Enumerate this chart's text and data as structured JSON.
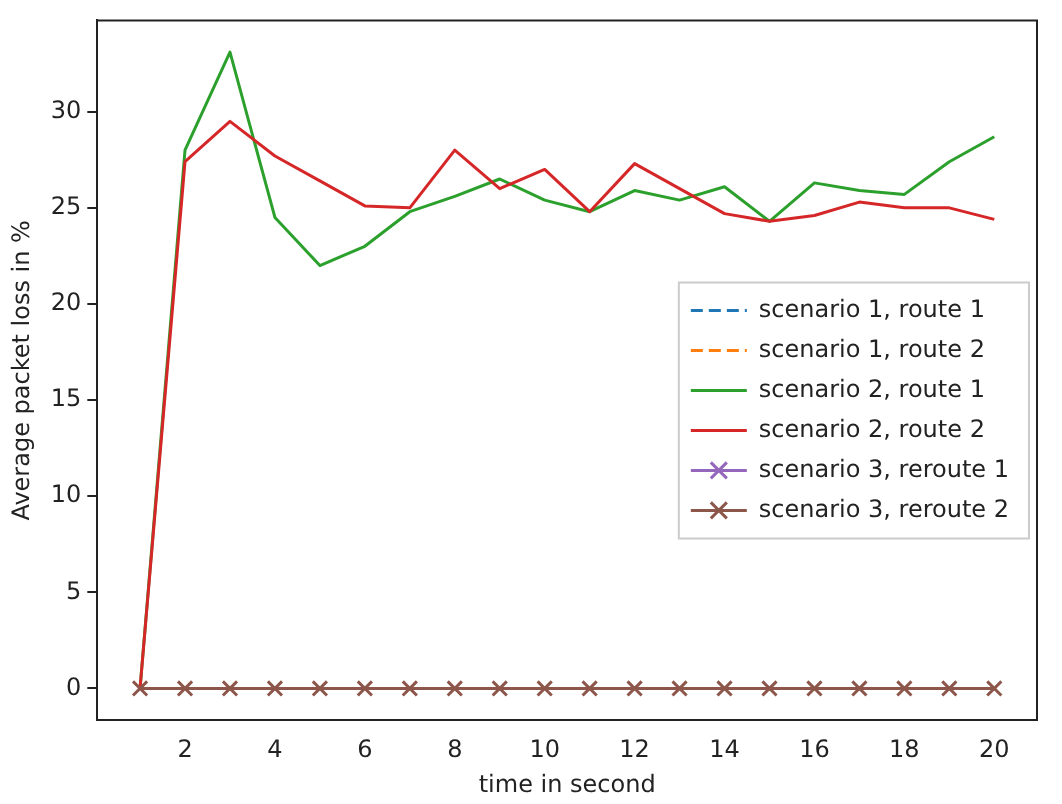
{
  "chart_data": {
    "type": "line",
    "xlabel": "time in second",
    "ylabel": "Average packet loss in %",
    "x": [
      1,
      2,
      3,
      4,
      5,
      6,
      7,
      8,
      9,
      10,
      11,
      12,
      13,
      14,
      15,
      16,
      17,
      18,
      19,
      20
    ],
    "xlim": [
      0.05,
      20.95
    ],
    "xticks": [
      2,
      4,
      6,
      8,
      10,
      12,
      14,
      16,
      18,
      20
    ],
    "ylim": [
      -1.66,
      34.75
    ],
    "yticks": [
      0,
      5,
      10,
      15,
      20,
      25,
      30
    ],
    "grid": false,
    "legend": "right",
    "series": [
      {
        "name": "scenario 1, route 1",
        "color": "#1f77b4",
        "line_style": "dashed",
        "values": [
          null,
          null,
          null,
          null,
          null,
          null,
          null,
          null,
          null,
          null,
          null,
          null,
          null,
          null,
          null,
          null,
          null,
          null,
          null,
          null
        ]
      },
      {
        "name": "scenario 1, route 2",
        "color": "#ff7f0e",
        "line_style": "dashed",
        "values": [
          null,
          null,
          null,
          null,
          null,
          null,
          null,
          null,
          null,
          null,
          null,
          null,
          null,
          null,
          null,
          null,
          null,
          null,
          null,
          null
        ]
      },
      {
        "name": "scenario 2, route 1",
        "color": "#2ca02c",
        "line_style": "solid",
        "values": [
          0,
          28,
          33.1,
          24.5,
          22,
          23,
          24.8,
          25.6,
          26.5,
          25.4,
          24.8,
          25.9,
          25.4,
          26.1,
          24.3,
          26.3,
          25.9,
          25.7,
          27.4,
          28.7
        ]
      },
      {
        "name": "scenario 2, route 2",
        "color": "#d62728",
        "line_style": "solid",
        "values": [
          0,
          27.4,
          29.5,
          27.7,
          26.4,
          25.1,
          25,
          28,
          26,
          27,
          24.8,
          27.3,
          26,
          24.7,
          24.3,
          24.6,
          25.3,
          25,
          25,
          24.4
        ]
      },
      {
        "name": "scenario 3, reroute 1",
        "color": "#9467bd",
        "line_style": "solid",
        "marker": "cross",
        "values": [
          null,
          null,
          null,
          null,
          null,
          null,
          null,
          null,
          null,
          null,
          null,
          null,
          null,
          null,
          null,
          null,
          null,
          null,
          null,
          null
        ]
      },
      {
        "name": "scenario 3, reroute 2",
        "color": "#8c564b",
        "line_style": "solid",
        "marker": "cross",
        "values": [
          0,
          0,
          0,
          0,
          0,
          0,
          0,
          0,
          0,
          0,
          0,
          0,
          0,
          0,
          0,
          0,
          0,
          0,
          0,
          0
        ]
      }
    ]
  }
}
